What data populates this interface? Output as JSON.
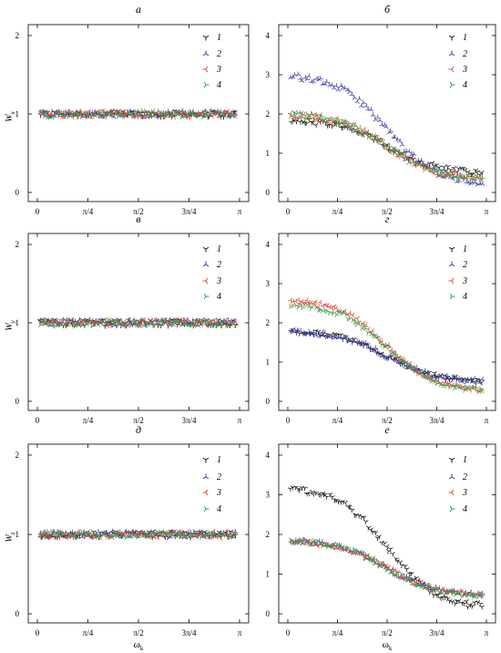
{
  "colors": {
    "1": "#111111",
    "2": "#3a3aa6",
    "3": "#e0473a",
    "4": "#3f9a4a"
  },
  "legend_labels": [
    "1",
    "2",
    "3",
    "4"
  ],
  "x_label": "ω",
  "x_label_sub": "k",
  "chart_data": [
    {
      "type": "scatter",
      "title": "а",
      "ylabel": "W",
      "ylabel_sub": "x",
      "xlim": [
        0,
        3.1416
      ],
      "ylim": [
        0,
        2
      ],
      "x_ticks": [
        0,
        0.7854,
        1.5708,
        2.3562,
        3.1416
      ],
      "x_tick_labels": [
        "0",
        "π/4",
        "π/2",
        "3π/4",
        "π"
      ],
      "y_ticks": [
        0,
        1,
        2
      ],
      "series_formulas": [
        {
          "name": "1",
          "model": "flat",
          "start": 1.0,
          "mid": 1.0,
          "end": 1.0,
          "noise": 0.04
        },
        {
          "name": "2",
          "model": "flat",
          "start": 1.0,
          "mid": 1.0,
          "end": 1.0,
          "noise": 0.04
        },
        {
          "name": "3",
          "model": "flat",
          "start": 1.0,
          "mid": 1.0,
          "end": 1.0,
          "noise": 0.04
        },
        {
          "name": "4",
          "model": "flat",
          "start": 1.0,
          "mid": 1.0,
          "end": 1.0,
          "noise": 0.04
        }
      ]
    },
    {
      "type": "scatter",
      "title": "б",
      "ylabel": "",
      "ylabel_sub": "",
      "xlim": [
        0,
        3.1416
      ],
      "ylim": [
        0,
        4
      ],
      "x_ticks": [
        0,
        0.7854,
        1.5708,
        2.3562,
        3.1416
      ],
      "x_tick_labels": [
        "0",
        "π/4",
        "π/2",
        "3π/4",
        "π"
      ],
      "y_ticks": [
        0,
        1,
        2,
        3,
        4
      ],
      "series_formulas": [
        {
          "name": "1",
          "model": "sigmoid",
          "start": 1.85,
          "mid": 1.3,
          "end": 0.5,
          "noise": 0.04
        },
        {
          "name": "2",
          "model": "sigmoid",
          "start": 3.0,
          "mid": 1.2,
          "end": 0.2,
          "noise": 0.04
        },
        {
          "name": "3",
          "model": "sigmoid",
          "start": 2.0,
          "mid": 1.25,
          "end": 0.35,
          "noise": 0.04
        },
        {
          "name": "4",
          "model": "sigmoid",
          "start": 2.0,
          "mid": 1.25,
          "end": 0.35,
          "noise": 0.04
        }
      ]
    },
    {
      "type": "scatter",
      "title": "в",
      "ylabel": "W",
      "ylabel_sub": "y",
      "xlim": [
        0,
        3.1416
      ],
      "ylim": [
        0,
        2
      ],
      "x_ticks": [
        0,
        0.7854,
        1.5708,
        2.3562,
        3.1416
      ],
      "x_tick_labels": [
        "0",
        "π/4",
        "π/2",
        "3π/4",
        "π"
      ],
      "y_ticks": [
        0,
        1,
        2
      ],
      "series_formulas": [
        {
          "name": "1",
          "model": "flat",
          "start": 1.0,
          "mid": 1.0,
          "end": 1.0,
          "noise": 0.04
        },
        {
          "name": "2",
          "model": "flat",
          "start": 1.0,
          "mid": 1.0,
          "end": 1.0,
          "noise": 0.04
        },
        {
          "name": "3",
          "model": "flat",
          "start": 1.0,
          "mid": 1.0,
          "end": 1.0,
          "noise": 0.04
        },
        {
          "name": "4",
          "model": "flat",
          "start": 1.0,
          "mid": 1.0,
          "end": 1.0,
          "noise": 0.04
        }
      ]
    },
    {
      "type": "scatter",
      "title": "г",
      "ylabel": "",
      "ylabel_sub": "",
      "xlim": [
        0,
        3.1416
      ],
      "ylim": [
        0,
        4
      ],
      "x_ticks": [
        0,
        0.7854,
        1.5708,
        2.3562,
        3.1416
      ],
      "x_tick_labels": [
        "0",
        "π/4",
        "π/2",
        "3π/4",
        "π"
      ],
      "y_ticks": [
        0,
        1,
        2,
        3,
        4
      ],
      "series_formulas": [
        {
          "name": "1",
          "model": "sigmoid",
          "start": 1.8,
          "mid": 1.2,
          "end": 0.5,
          "noise": 0.03
        },
        {
          "name": "2",
          "model": "sigmoid",
          "start": 1.8,
          "mid": 1.2,
          "end": 0.5,
          "noise": 0.03
        },
        {
          "name": "3",
          "model": "sigmoid",
          "start": 2.6,
          "mid": 1.15,
          "end": 0.25,
          "noise": 0.03
        },
        {
          "name": "4",
          "model": "sigmoid",
          "start": 2.5,
          "mid": 1.15,
          "end": 0.25,
          "noise": 0.03
        }
      ]
    },
    {
      "type": "scatter",
      "title": "д",
      "ylabel": "W",
      "ylabel_sub": "z",
      "xlim": [
        0,
        3.1416
      ],
      "ylim": [
        0,
        2
      ],
      "x_ticks": [
        0,
        0.7854,
        1.5708,
        2.3562,
        3.1416
      ],
      "x_tick_labels": [
        "0",
        "π/4",
        "π/2",
        "3π/4",
        "π"
      ],
      "y_ticks": [
        0,
        1,
        2
      ],
      "series_formulas": [
        {
          "name": "1",
          "model": "flat",
          "start": 1.0,
          "mid": 1.0,
          "end": 1.0,
          "noise": 0.04
        },
        {
          "name": "2",
          "model": "flat",
          "start": 1.0,
          "mid": 1.0,
          "end": 1.0,
          "noise": 0.04
        },
        {
          "name": "3",
          "model": "flat",
          "start": 1.0,
          "mid": 1.0,
          "end": 1.0,
          "noise": 0.04
        },
        {
          "name": "4",
          "model": "flat",
          "start": 1.0,
          "mid": 1.0,
          "end": 1.0,
          "noise": 0.04
        }
      ]
    },
    {
      "type": "scatter",
      "title": "е",
      "ylabel": "",
      "ylabel_sub": "",
      "xlim": [
        0,
        3.1416
      ],
      "ylim": [
        0,
        4
      ],
      "x_ticks": [
        0,
        0.7854,
        1.5708,
        2.3562,
        3.1416
      ],
      "x_tick_labels": [
        "0",
        "π/4",
        "π/2",
        "3π/4",
        "π"
      ],
      "y_ticks": [
        0,
        1,
        2,
        3,
        4
      ],
      "series_formulas": [
        {
          "name": "1",
          "model": "sigmoid",
          "start": 3.2,
          "mid": 1.1,
          "end": 0.15,
          "noise": 0.04
        },
        {
          "name": "2",
          "model": "sigmoid",
          "start": 1.85,
          "mid": 1.2,
          "end": 0.45,
          "noise": 0.03
        },
        {
          "name": "3",
          "model": "sigmoid",
          "start": 1.85,
          "mid": 1.2,
          "end": 0.45,
          "noise": 0.03
        },
        {
          "name": "4",
          "model": "sigmoid",
          "start": 1.85,
          "mid": 1.2,
          "end": 0.45,
          "noise": 0.03
        }
      ]
    }
  ]
}
